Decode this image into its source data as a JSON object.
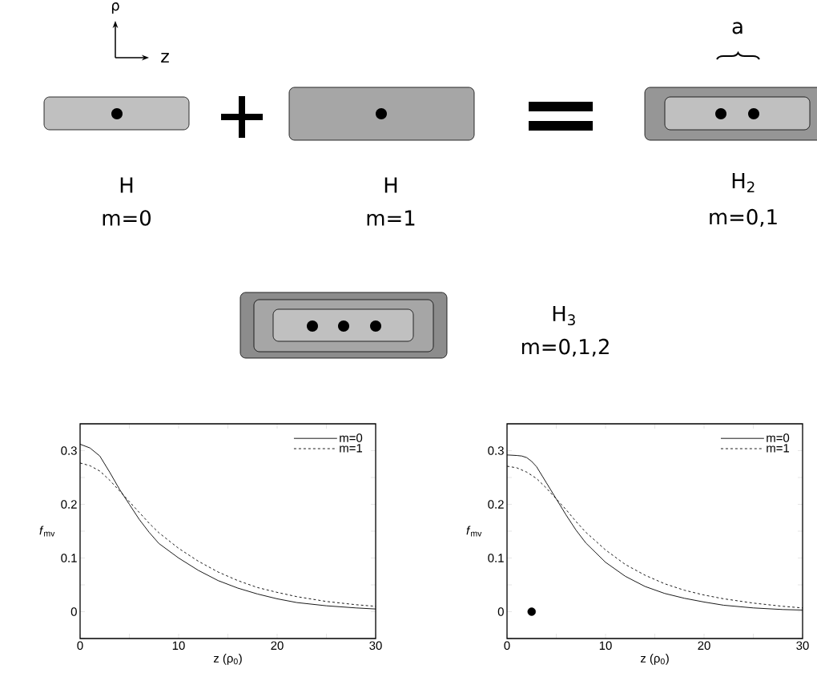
{
  "chart_data": [
    {
      "type": "other",
      "annotations": [
        "ρ",
        "z",
        "a",
        "H",
        "m=0",
        "H",
        "m=1",
        "H$_{2}$",
        "m=0,1",
        "H$_{3}$",
        "m=0,1,2"
      ]
    },
    {
      "type": "line",
      "xlabel": "z (ρ$_{0}$)",
      "ylabel": "*f*$_{mv}$",
      "xlim": [
        0,
        30
      ],
      "ylim": [
        -0.05,
        0.35
      ],
      "xticks": [
        0,
        {
          "value": 5,
          "label": null
        },
        10,
        {
          "value": 15,
          "label": null
        },
        20,
        {
          "value": 25,
          "label": null
        },
        30
      ],
      "yticks": [
        {
          "value": -0.05,
          "label": null
        },
        0,
        {
          "value": 0.05,
          "label": null
        },
        0.1,
        {
          "value": 0.15,
          "label": null
        },
        0.2,
        {
          "value": 0.25,
          "label": null
        },
        0.3
      ],
      "legend": "top right",
      "grid": false,
      "series": [
        {
          "name": "m=0",
          "color": "#000000",
          "line_style": "solid",
          "x": [
            0,
            1,
            2,
            3,
            4,
            5,
            6,
            7,
            8,
            10,
            12,
            14,
            16,
            18,
            20,
            22,
            25,
            28,
            30
          ],
          "values": [
            0.312,
            0.305,
            0.29,
            0.26,
            0.228,
            0.2,
            0.172,
            0.148,
            0.127,
            0.1,
            0.077,
            0.058,
            0.044,
            0.033,
            0.024,
            0.017,
            0.011,
            0.007,
            0.005
          ]
        },
        {
          "name": "m=1",
          "color": "#000000",
          "line_style": "dashed",
          "x": [
            0,
            1,
            2,
            3,
            4,
            5,
            6,
            7,
            8,
            10,
            12,
            14,
            16,
            18,
            20,
            22,
            25,
            28,
            30
          ],
          "values": [
            0.277,
            0.272,
            0.262,
            0.245,
            0.225,
            0.205,
            0.185,
            0.165,
            0.147,
            0.118,
            0.094,
            0.074,
            0.058,
            0.045,
            0.036,
            0.028,
            0.019,
            0.013,
            0.01
          ]
        }
      ]
    },
    {
      "type": "line",
      "xlabel": "z (ρ$_{0}$)",
      "ylabel": "*f*$_{mv}$",
      "xlim": [
        0,
        30
      ],
      "ylim": [
        -0.05,
        0.35
      ],
      "xticks": [
        0,
        {
          "value": 5,
          "label": null
        },
        10,
        {
          "value": 15,
          "label": null
        },
        20,
        {
          "value": 25,
          "label": null
        },
        30
      ],
      "yticks": [
        {
          "value": -0.05,
          "label": null
        },
        0,
        {
          "value": 0.05,
          "label": null
        },
        0.1,
        {
          "value": 0.15,
          "label": null
        },
        0.2,
        {
          "value": 0.25,
          "label": null
        },
        0.3
      ],
      "legend": "top right",
      "grid": false,
      "series": [
        {
          "name": "m=0",
          "color": "#000000",
          "line_style": "solid",
          "x": [
            0,
            1,
            1.5,
            2,
            2.5,
            3,
            4,
            5,
            6,
            7,
            8,
            10,
            12,
            14,
            16,
            18,
            20,
            22,
            25,
            28,
            30
          ],
          "values": [
            0.292,
            0.291,
            0.29,
            0.287,
            0.28,
            0.27,
            0.24,
            0.21,
            0.18,
            0.152,
            0.128,
            0.092,
            0.066,
            0.047,
            0.034,
            0.025,
            0.018,
            0.012,
            0.007,
            0.004,
            0.003
          ]
        },
        {
          "name": "m=1",
          "color": "#000000",
          "line_style": "dashed",
          "x": [
            0,
            1,
            2,
            3,
            4,
            5,
            6,
            7,
            8,
            10,
            12,
            14,
            16,
            18,
            20,
            22,
            25,
            28,
            30
          ],
          "values": [
            0.271,
            0.268,
            0.26,
            0.248,
            0.23,
            0.21,
            0.19,
            0.168,
            0.148,
            0.115,
            0.088,
            0.068,
            0.052,
            0.04,
            0.031,
            0.024,
            0.016,
            0.01,
            0.007
          ]
        },
        {
          "type": "scatter",
          "color": "#000000",
          "marker": "circle",
          "x": [
            2.5
          ],
          "values": [
            0
          ]
        }
      ]
    }
  ]
}
